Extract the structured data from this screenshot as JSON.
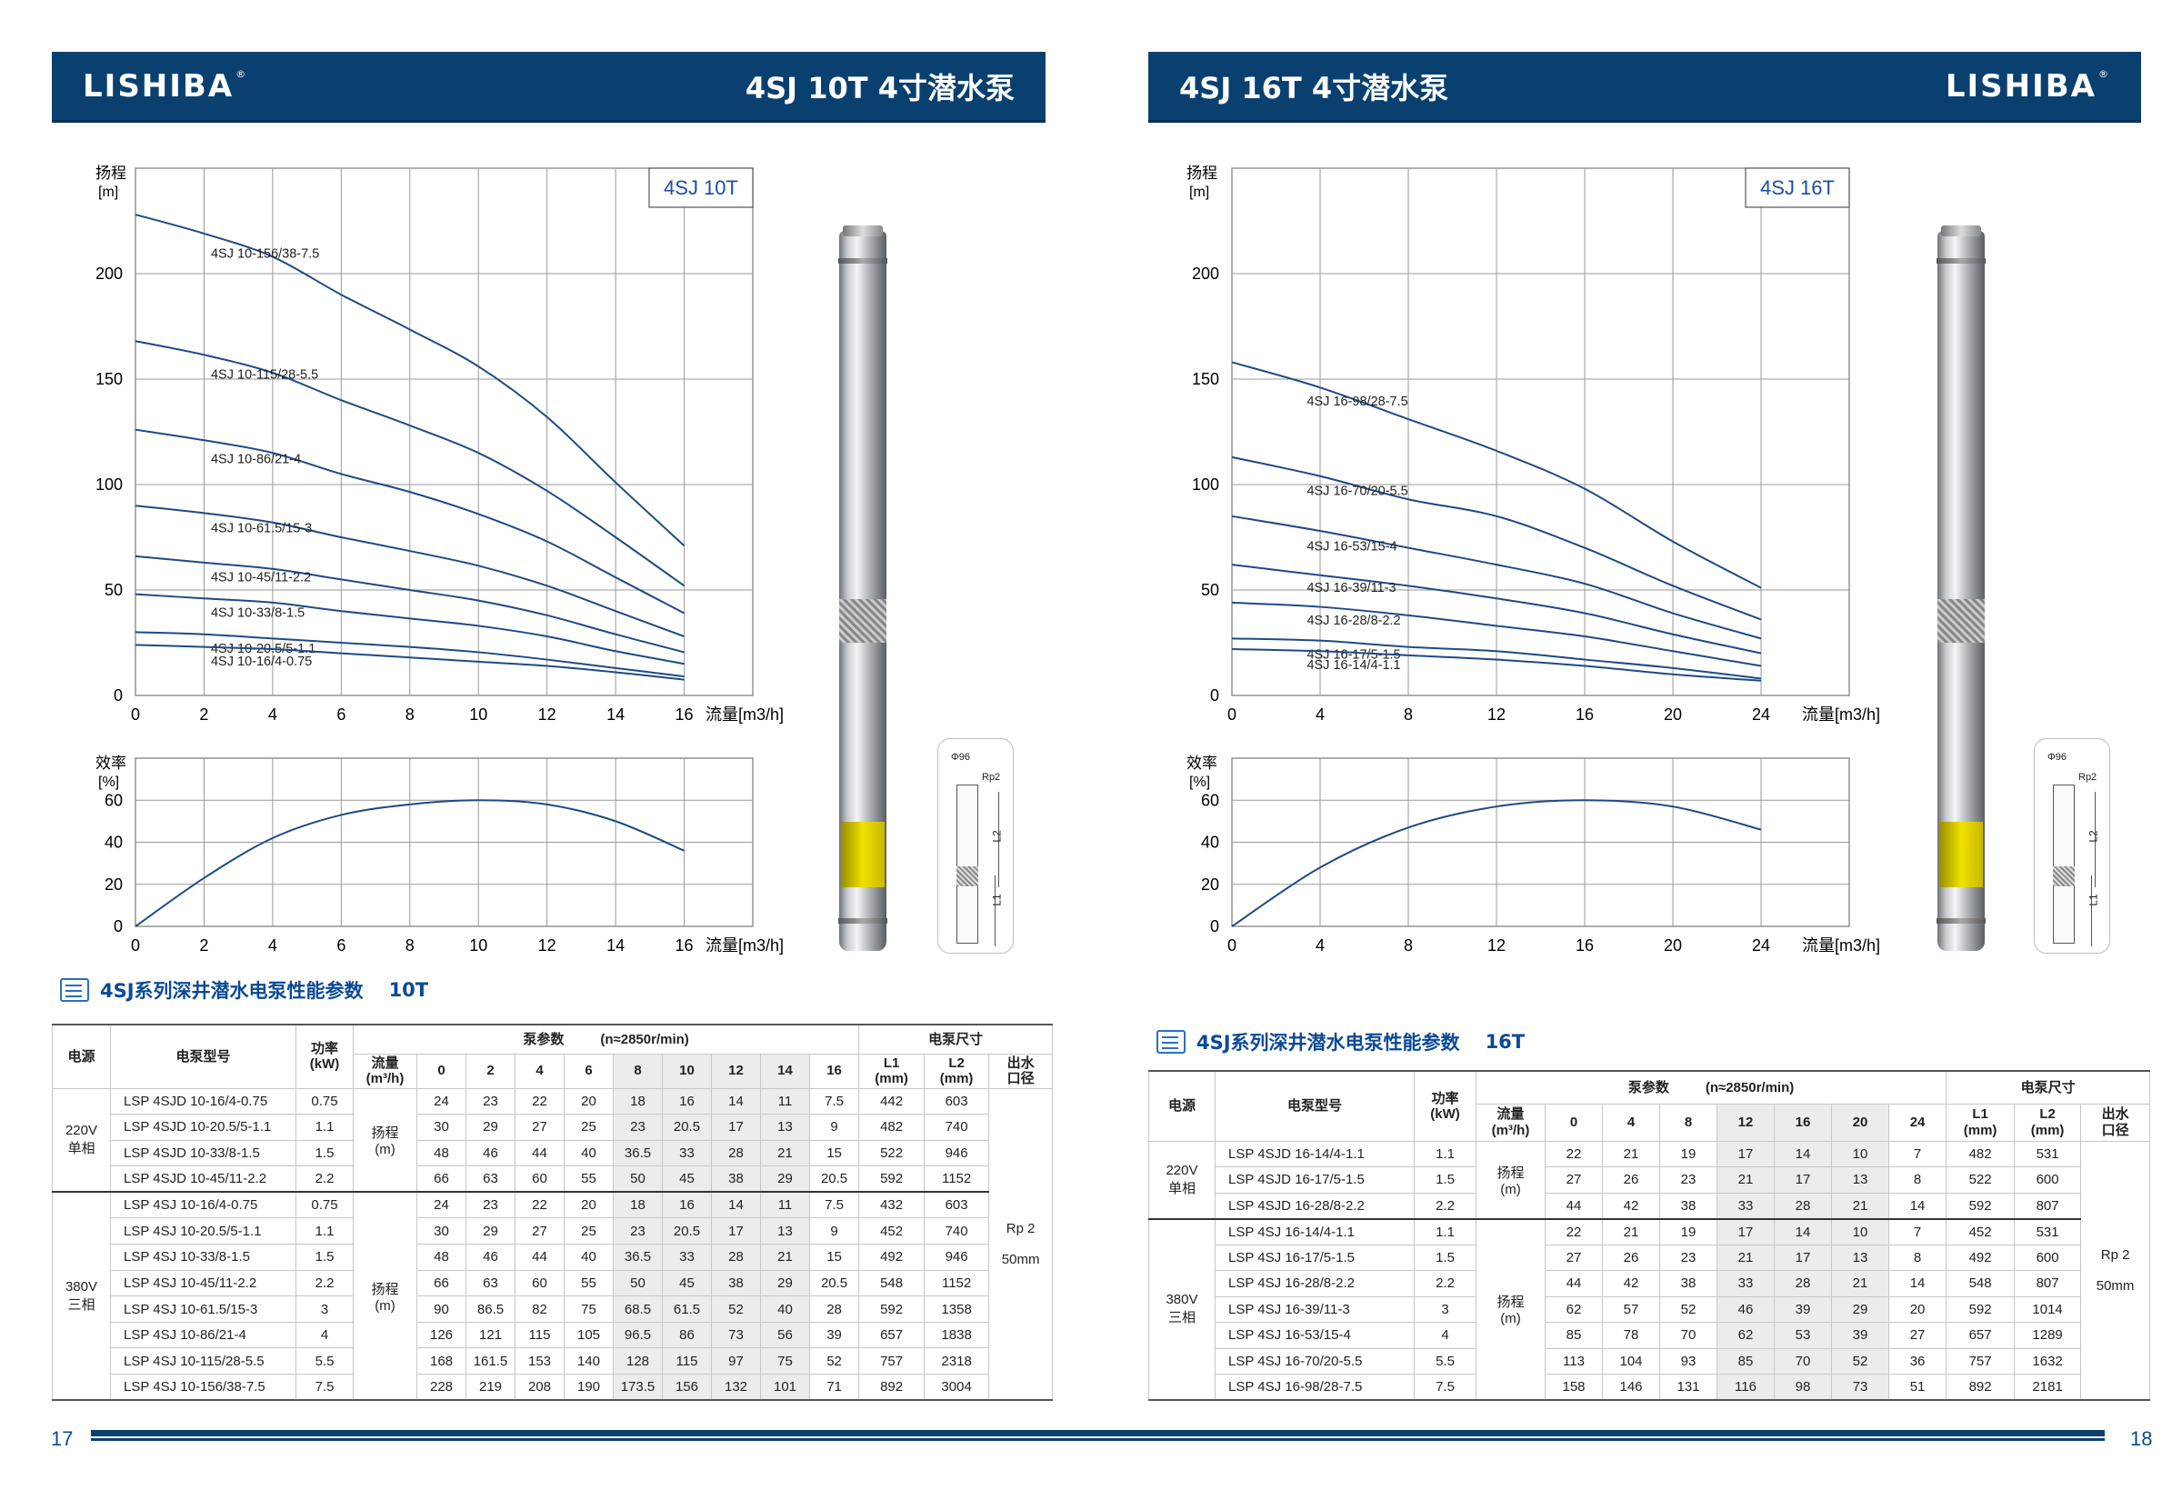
{
  "brand": {
    "logo_text": "LISHIBA",
    "registered_mark": "®"
  },
  "pages": [
    {
      "page_number": "17",
      "header_title": "4SJ 10T 4寸潜水泵",
      "chart_labels": {
        "head_axis": "扬程",
        "head_unit": "[m]",
        "eff_axis": "效率",
        "eff_unit": "[%]",
        "flow_axis": "流量[m3/h]",
        "legend": "4SJ 10T"
      },
      "dimension_drawing": {
        "diameter": "Φ96",
        "outlet": "Rp2",
        "l2": "L2",
        "l1": "L1"
      },
      "table_title": "4SJ系列深井潜水电泵性能参数",
      "table_suffix": "10T",
      "table": {
        "h_power_source": "电源",
        "h_model": "电泵型号",
        "h_power": "功率\n(kW)",
        "h_pump_params": "泵参数",
        "h_speed": "(n≈2850r/min)",
        "h_dims": "电泵尺寸",
        "h_flow": "流量\n(m³/h)",
        "h_l1": "L1\n(mm)",
        "h_l2": "L2\n(mm)",
        "h_outlet": "出水\n口径",
        "flows": [
          "0",
          "2",
          "4",
          "6",
          "8",
          "10",
          "12",
          "14",
          "16"
        ],
        "highlight": [
          4,
          5,
          6,
          7
        ],
        "head_label": "扬程\n(m)",
        "outlet_value": "Rp 2\n\n50mm",
        "groups": [
          {
            "voltage": "220V\n单相",
            "rows": [
              {
                "model": "LSP 4SJD 10-16/4-0.75",
                "power": "0.75",
                "heads": [
                  "24",
                  "23",
                  "22",
                  "20",
                  "18",
                  "16",
                  "14",
                  "11",
                  "7.5"
                ],
                "l1": "442",
                "l2": "603"
              },
              {
                "model": "LSP 4SJD 10-20.5/5-1.1",
                "power": "1.1",
                "heads": [
                  "30",
                  "29",
                  "27",
                  "25",
                  "23",
                  "20.5",
                  "17",
                  "13",
                  "9"
                ],
                "l1": "482",
                "l2": "740"
              },
              {
                "model": "LSP 4SJD 10-33/8-1.5",
                "power": "1.5",
                "heads": [
                  "48",
                  "46",
                  "44",
                  "40",
                  "36.5",
                  "33",
                  "28",
                  "21",
                  "15"
                ],
                "l1": "522",
                "l2": "946"
              },
              {
                "model": "LSP 4SJD 10-45/11-2.2",
                "power": "2.2",
                "heads": [
                  "66",
                  "63",
                  "60",
                  "55",
                  "50",
                  "45",
                  "38",
                  "29",
                  "20.5"
                ],
                "l1": "592",
                "l2": "1152"
              }
            ]
          },
          {
            "voltage": "380V\n三相",
            "rows": [
              {
                "model": "LSP 4SJ 10-16/4-0.75",
                "power": "0.75",
                "heads": [
                  "24",
                  "23",
                  "22",
                  "20",
                  "18",
                  "16",
                  "14",
                  "11",
                  "7.5"
                ],
                "l1": "432",
                "l2": "603"
              },
              {
                "model": "LSP 4SJ 10-20.5/5-1.1",
                "power": "1.1",
                "heads": [
                  "30",
                  "29",
                  "27",
                  "25",
                  "23",
                  "20.5",
                  "17",
                  "13",
                  "9"
                ],
                "l1": "452",
                "l2": "740"
              },
              {
                "model": "LSP 4SJ 10-33/8-1.5",
                "power": "1.5",
                "heads": [
                  "48",
                  "46",
                  "44",
                  "40",
                  "36.5",
                  "33",
                  "28",
                  "21",
                  "15"
                ],
                "l1": "492",
                "l2": "946"
              },
              {
                "model": "LSP 4SJ 10-45/11-2.2",
                "power": "2.2",
                "heads": [
                  "66",
                  "63",
                  "60",
                  "55",
                  "50",
                  "45",
                  "38",
                  "29",
                  "20.5"
                ],
                "l1": "548",
                "l2": "1152"
              },
              {
                "model": "LSP 4SJ 10-61.5/15-3",
                "power": "3",
                "heads": [
                  "90",
                  "86.5",
                  "82",
                  "75",
                  "68.5",
                  "61.5",
                  "52",
                  "40",
                  "28"
                ],
                "l1": "592",
                "l2": "1358"
              },
              {
                "model": "LSP 4SJ 10-86/21-4",
                "power": "4",
                "heads": [
                  "126",
                  "121",
                  "115",
                  "105",
                  "96.5",
                  "86",
                  "73",
                  "56",
                  "39"
                ],
                "l1": "657",
                "l2": "1838"
              },
              {
                "model": "LSP 4SJ 10-115/28-5.5",
                "power": "5.5",
                "heads": [
                  "168",
                  "161.5",
                  "153",
                  "140",
                  "128",
                  "115",
                  "97",
                  "75",
                  "52"
                ],
                "l1": "757",
                "l2": "2318"
              },
              {
                "model": "LSP 4SJ 10-156/38-7.5",
                "power": "7.5",
                "heads": [
                  "228",
                  "219",
                  "208",
                  "190",
                  "173.5",
                  "156",
                  "132",
                  "101",
                  "71"
                ],
                "l1": "892",
                "l2": "3004"
              }
            ]
          }
        ]
      }
    },
    {
      "page_number": "18",
      "header_title": "4SJ 16T 4寸潜水泵",
      "chart_labels": {
        "head_axis": "扬程",
        "head_unit": "[m]",
        "eff_axis": "效率",
        "eff_unit": "[%]",
        "flow_axis": "流量[m3/h]",
        "legend": "4SJ 16T"
      },
      "dimension_drawing": {
        "diameter": "Φ96",
        "outlet": "Rp2",
        "l2": "L2",
        "l1": "L1"
      },
      "table_title": "4SJ系列深井潜水电泵性能参数",
      "table_suffix": "16T",
      "table": {
        "h_power_source": "电源",
        "h_model": "电泵型号",
        "h_power": "功率\n(kW)",
        "h_pump_params": "泵参数",
        "h_speed": "(n≈2850r/min)",
        "h_dims": "电泵尺寸",
        "h_flow": "流量\n(m³/h)",
        "h_l1": "L1\n(mm)",
        "h_l2": "L2\n(mm)",
        "h_outlet": "出水\n口径",
        "flows": [
          "0",
          "4",
          "8",
          "12",
          "16",
          "20",
          "24"
        ],
        "highlight": [
          3,
          4,
          5
        ],
        "head_label": "扬程\n(m)",
        "outlet_value": "Rp 2\n\n50mm",
        "groups": [
          {
            "voltage": "220V\n单相",
            "rows": [
              {
                "model": "LSP 4SJD 16-14/4-1.1",
                "power": "1.1",
                "heads": [
                  "22",
                  "21",
                  "19",
                  "17",
                  "14",
                  "10",
                  "7"
                ],
                "l1": "482",
                "l2": "531"
              },
              {
                "model": "LSP 4SJD 16-17/5-1.5",
                "power": "1.5",
                "heads": [
                  "27",
                  "26",
                  "23",
                  "21",
                  "17",
                  "13",
                  "8"
                ],
                "l1": "522",
                "l2": "600"
              },
              {
                "model": "LSP 4SJD 16-28/8-2.2",
                "power": "2.2",
                "heads": [
                  "44",
                  "42",
                  "38",
                  "33",
                  "28",
                  "21",
                  "14"
                ],
                "l1": "592",
                "l2": "807"
              }
            ]
          },
          {
            "voltage": "380V\n三相",
            "rows": [
              {
                "model": "LSP 4SJ 16-14/4-1.1",
                "power": "1.1",
                "heads": [
                  "22",
                  "21",
                  "19",
                  "17",
                  "14",
                  "10",
                  "7"
                ],
                "l1": "452",
                "l2": "531"
              },
              {
                "model": "LSP 4SJ 16-17/5-1.5",
                "power": "1.5",
                "heads": [
                  "27",
                  "26",
                  "23",
                  "21",
                  "17",
                  "13",
                  "8"
                ],
                "l1": "492",
                "l2": "600"
              },
              {
                "model": "LSP 4SJ 16-28/8-2.2",
                "power": "2.2",
                "heads": [
                  "44",
                  "42",
                  "38",
                  "33",
                  "28",
                  "21",
                  "14"
                ],
                "l1": "548",
                "l2": "807"
              },
              {
                "model": "LSP 4SJ 16-39/11-3",
                "power": "3",
                "heads": [
                  "62",
                  "57",
                  "52",
                  "46",
                  "39",
                  "29",
                  "20"
                ],
                "l1": "592",
                "l2": "1014"
              },
              {
                "model": "LSP 4SJ 16-53/15-4",
                "power": "4",
                "heads": [
                  "85",
                  "78",
                  "70",
                  "62",
                  "53",
                  "39",
                  "27"
                ],
                "l1": "657",
                "l2": "1289"
              },
              {
                "model": "LSP 4SJ 16-70/20-5.5",
                "power": "5.5",
                "heads": [
                  "113",
                  "104",
                  "93",
                  "85",
                  "70",
                  "52",
                  "36"
                ],
                "l1": "757",
                "l2": "1632"
              },
              {
                "model": "LSP 4SJ 16-98/28-7.5",
                "power": "7.5",
                "heads": [
                  "158",
                  "146",
                  "131",
                  "116",
                  "98",
                  "73",
                  "51"
                ],
                "l1": "892",
                "l2": "2181"
              }
            ]
          }
        ]
      }
    }
  ],
  "chart_data": [
    {
      "type": "line",
      "title": "4SJ 10T",
      "xlabel": "流量[m3/h]",
      "ylabel": "扬程 [m]",
      "xlim": [
        0,
        18
      ],
      "ylim": [
        0,
        250
      ],
      "xticks": [
        0,
        2,
        4,
        6,
        8,
        10,
        12,
        14,
        16
      ],
      "yticks": [
        0,
        50,
        100,
        150,
        200
      ],
      "grid": true,
      "legend": "top-right",
      "x": [
        0,
        2,
        4,
        6,
        8,
        10,
        12,
        14,
        16
      ],
      "series": [
        {
          "name": "4SJ 10-156/38-7.5",
          "values": [
            228,
            219,
            208,
            190,
            173.5,
            156,
            132,
            101,
            71
          ]
        },
        {
          "name": "4SJ 10-115/28-5.5",
          "values": [
            168,
            161.5,
            153,
            140,
            128,
            115,
            97,
            75,
            52
          ]
        },
        {
          "name": "4SJ 10-86/21-4",
          "values": [
            126,
            121,
            115,
            105,
            96.5,
            86,
            73,
            56,
            39
          ]
        },
        {
          "name": "4SJ 10-61.5/15-3",
          "values": [
            90,
            86.5,
            82,
            75,
            68.5,
            61.5,
            52,
            40,
            28
          ]
        },
        {
          "name": "4SJ 10-45/11-2.2",
          "values": [
            66,
            63,
            60,
            55,
            50,
            45,
            38,
            29,
            20.5
          ]
        },
        {
          "name": "4SJ 10-33/8-1.5",
          "values": [
            48,
            46,
            44,
            40,
            36.5,
            33,
            28,
            21,
            15
          ]
        },
        {
          "name": "4SJ 10-20.5/5-1.1",
          "values": [
            30,
            29,
            27,
            25,
            23,
            20.5,
            17,
            13,
            9
          ]
        },
        {
          "name": "4SJ 10-16/4-0.75",
          "values": [
            24,
            23,
            22,
            20,
            18,
            16,
            14,
            11,
            7.5
          ]
        }
      ]
    },
    {
      "type": "line",
      "title": "",
      "xlabel": "流量[m3/h]",
      "ylabel": "效率 [%]",
      "xlim": [
        0,
        18
      ],
      "ylim": [
        0,
        80
      ],
      "xticks": [
        0,
        2,
        4,
        6,
        8,
        10,
        12,
        14,
        16
      ],
      "yticks": [
        0,
        20,
        40,
        60
      ],
      "grid": true,
      "x": [
        0,
        2,
        4,
        6,
        8,
        10,
        12,
        14,
        16
      ],
      "series": [
        {
          "name": "efficiency",
          "values": [
            0,
            23,
            42,
            53,
            58,
            60,
            58,
            50,
            36
          ]
        }
      ]
    },
    {
      "type": "line",
      "title": "4SJ 16T",
      "xlabel": "流量[m3/h]",
      "ylabel": "扬程 [m]",
      "xlim": [
        0,
        28
      ],
      "ylim": [
        0,
        250
      ],
      "xticks": [
        0,
        4,
        8,
        12,
        16,
        20,
        24
      ],
      "yticks": [
        0,
        50,
        100,
        150,
        200
      ],
      "grid": true,
      "legend": "top-right",
      "x": [
        0,
        4,
        8,
        12,
        16,
        20,
        24
      ],
      "series": [
        {
          "name": "4SJ 16-98/28-7.5",
          "values": [
            158,
            146,
            131,
            116,
            98,
            73,
            51
          ]
        },
        {
          "name": "4SJ 16-70/20-5.5",
          "values": [
            113,
            104,
            93,
            85,
            70,
            52,
            36
          ]
        },
        {
          "name": "4SJ 16-53/15-4",
          "values": [
            85,
            78,
            70,
            62,
            53,
            39,
            27
          ]
        },
        {
          "name": "4SJ 16-39/11-3",
          "values": [
            62,
            57,
            52,
            46,
            39,
            29,
            20
          ]
        },
        {
          "name": "4SJ 16-28/8-2.2",
          "values": [
            44,
            42,
            38,
            33,
            28,
            21,
            14
          ]
        },
        {
          "name": "4SJ 16-17/5-1.5",
          "values": [
            27,
            26,
            23,
            21,
            17,
            13,
            8
          ]
        },
        {
          "name": "4SJ 16-14/4-1.1",
          "values": [
            22,
            21,
            19,
            17,
            14,
            10,
            7
          ]
        }
      ]
    },
    {
      "type": "line",
      "title": "",
      "xlabel": "流量[m3/h]",
      "ylabel": "效率 [%]",
      "xlim": [
        0,
        28
      ],
      "ylim": [
        0,
        80
      ],
      "xticks": [
        0,
        4,
        8,
        12,
        16,
        20,
        24
      ],
      "yticks": [
        0,
        20,
        40,
        60
      ],
      "grid": true,
      "x": [
        0,
        4,
        8,
        12,
        16,
        20,
        24
      ],
      "series": [
        {
          "name": "efficiency",
          "values": [
            0,
            28,
            47,
            57,
            60,
            57,
            46
          ]
        }
      ]
    }
  ]
}
